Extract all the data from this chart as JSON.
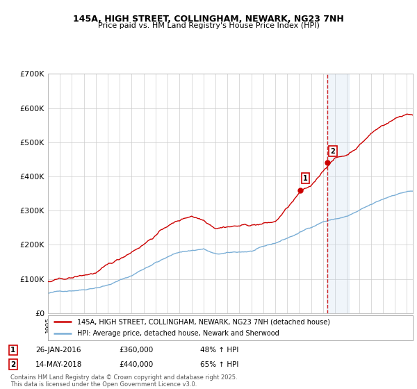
{
  "title1": "145A, HIGH STREET, COLLINGHAM, NEWARK, NG23 7NH",
  "title2": "Price paid vs. HM Land Registry's House Price Index (HPI)",
  "ylim": [
    0,
    700000
  ],
  "yticks": [
    0,
    100000,
    200000,
    300000,
    400000,
    500000,
    600000,
    700000
  ],
  "ytick_labels": [
    "£0",
    "£100K",
    "£200K",
    "£300K",
    "£400K",
    "£500K",
    "£600K",
    "£700K"
  ],
  "x_start_year": 1995,
  "x_end_year": 2025,
  "sale1_year": 2016.07,
  "sale1_price": 360000,
  "sale2_year": 2018.37,
  "sale2_price": 440000,
  "sale1_date": "26-JAN-2016",
  "sale1_pct": "48%",
  "sale2_date": "14-MAY-2018",
  "sale2_pct": "65%",
  "red_color": "#cc0000",
  "blue_color": "#7aaed6",
  "blue_shade_color": "#c5d8ee",
  "legend1": "145A, HIGH STREET, COLLINGHAM, NEWARK, NG23 7NH (detached house)",
  "legend2": "HPI: Average price, detached house, Newark and Sherwood",
  "footer1": "Contains HM Land Registry data © Crown copyright and database right 2025.",
  "footer2": "This data is licensed under the Open Government Licence v3.0.",
  "bg_color": "#ffffff",
  "grid_color": "#cccccc"
}
